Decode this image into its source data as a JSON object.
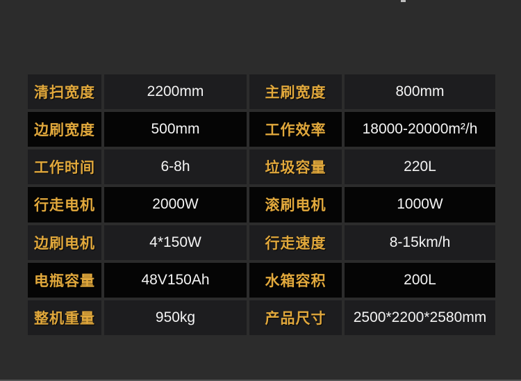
{
  "colors": {
    "page_background": "#2c2c2c",
    "row_odd_background": "#1d1d1f",
    "row_even_background": "#050505",
    "label_gold": "#e1a83c",
    "value_white": "#f4f4f4",
    "bottom_strip_gray": "#555555"
  },
  "spec_table": {
    "rows": [
      [
        "清扫宽度",
        "2200mm",
        "主刷宽度",
        "800mm"
      ],
      [
        "边刷宽度",
        "500mm",
        "工作效率",
        "18000-20000m²/h"
      ],
      [
        "工作时间",
        "6-8h",
        "垃圾容量",
        "220L"
      ],
      [
        "行走电机",
        "2000W",
        "滚刷电机",
        "1000W"
      ],
      [
        "边刷电机",
        "4*150W",
        "行走速度",
        "8-15km/h"
      ],
      [
        "电瓶容量",
        "48V150Ah",
        "水箱容积",
        "200L"
      ],
      [
        "整机重量",
        "950kg",
        "产品尺寸",
        "2500*2200*2580mm"
      ]
    ]
  }
}
